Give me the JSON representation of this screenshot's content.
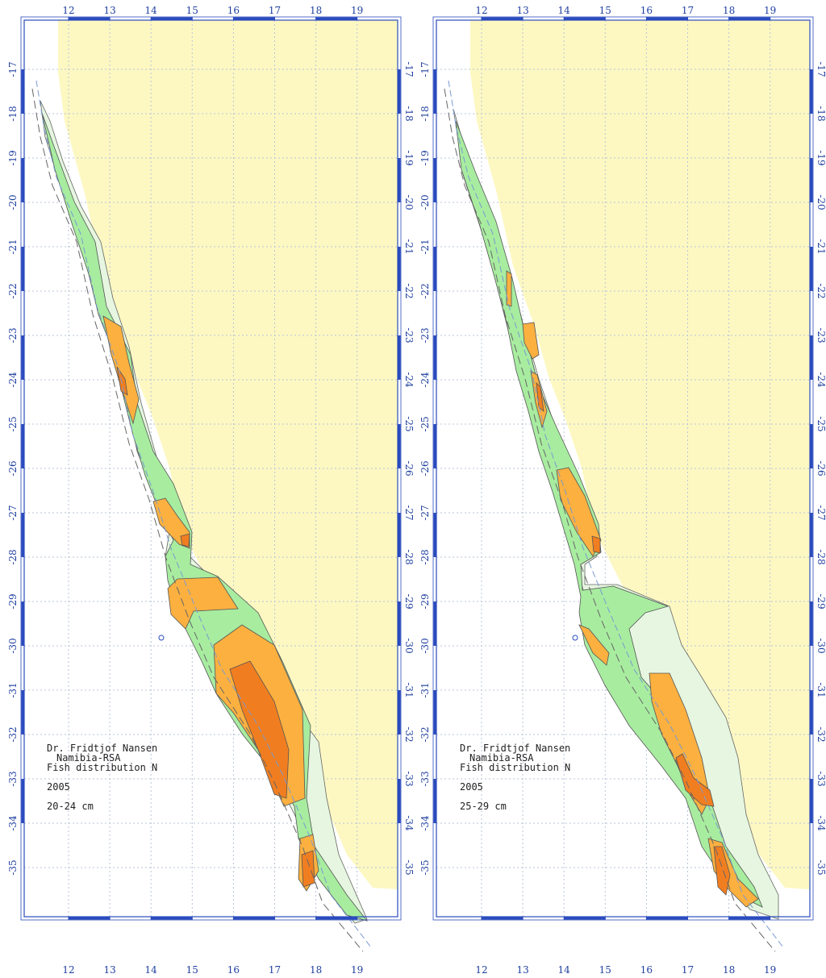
{
  "colors": {
    "land": "#fdf8c2",
    "frame": "#2a4bbd",
    "grid": "#b8c4d8",
    "coast_dots": "#9ab0d0",
    "contour_dash": "#7a9ad0",
    "green_light": "#e6f6e0",
    "green": "#a8eca0",
    "orange_light": "#fbb040",
    "orange": "#f07e20",
    "caption": "#222222",
    "tick_text": "#2040a0"
  },
  "panels": [
    {
      "id": "left",
      "lon_labels": [
        "12",
        "13",
        "14",
        "15",
        "16",
        "17",
        "18",
        "19"
      ],
      "lat_labels": [
        "-17",
        "-18",
        "-19",
        "-20",
        "-21",
        "-22",
        "-23",
        "-24",
        "-25",
        "-26",
        "-27",
        "-28",
        "-29",
        "-30",
        "-31",
        "-32",
        "-33",
        "-34",
        "-35"
      ],
      "caption": {
        "line1": "Dr. Fridtjof Nansen",
        "line2": "Namibia-RSA",
        "line3": "Fish distribution N",
        "year": "2005",
        "size_class": "20-24 cm"
      }
    },
    {
      "id": "right",
      "lon_labels": [
        "12",
        "13",
        "14",
        "15",
        "16",
        "17",
        "18",
        "19"
      ],
      "lat_labels": [
        "-17",
        "-18",
        "-19",
        "-20",
        "-21",
        "-22",
        "-23",
        "-24",
        "-25",
        "-26",
        "-27",
        "-28",
        "-29",
        "-30",
        "-31",
        "-32",
        "-33",
        "-34",
        "-35"
      ],
      "caption": {
        "line1": "Dr. Fridtjof Nansen",
        "line2": "Namibia-RSA",
        "line3": "Fish distribution N",
        "year": "2005",
        "size_class": "25-29 cm"
      }
    }
  ]
}
